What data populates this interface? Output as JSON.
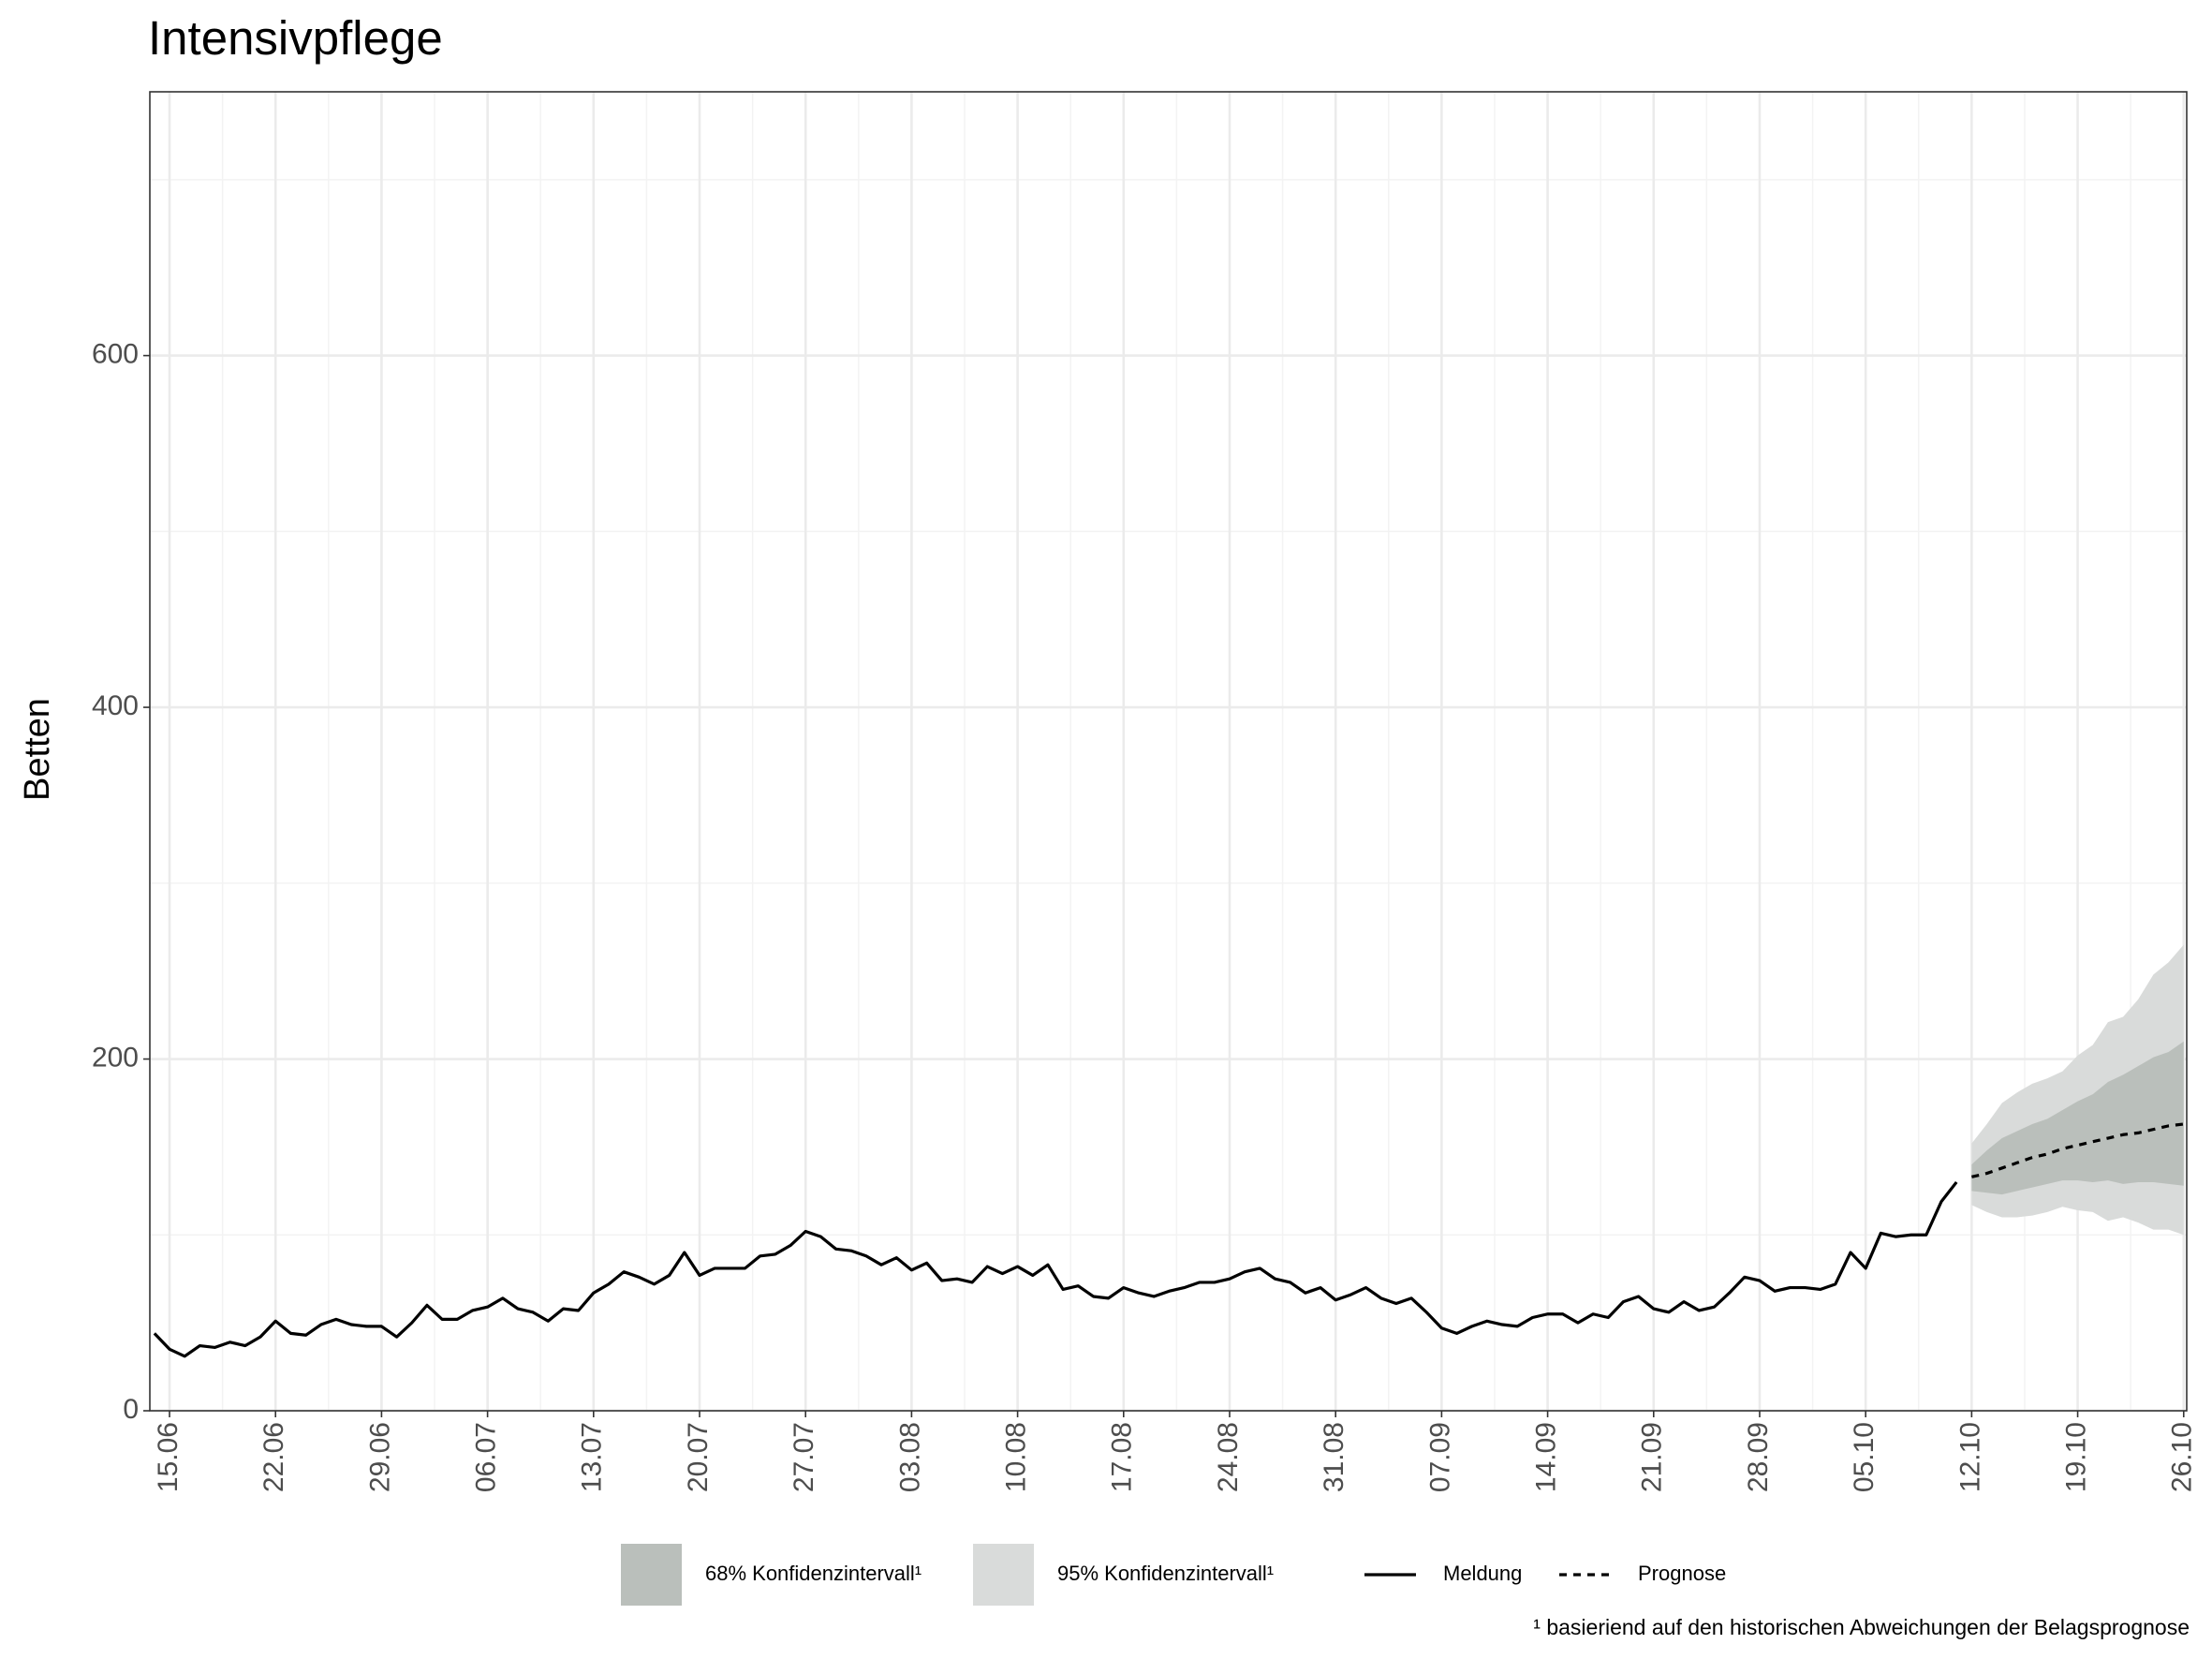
{
  "chart_data": {
    "type": "line",
    "title": "Intensivpflege",
    "ylabel": "Betten",
    "footnote": "¹ basieriend auf den historischen Abweichungen der Belagsprognose",
    "xlim": [
      "14.06",
      "26.10"
    ],
    "xticks": [
      "15.06",
      "22.06",
      "29.06",
      "06.07",
      "13.07",
      "20.07",
      "27.07",
      "03.08",
      "10.08",
      "17.08",
      "24.08",
      "31.08",
      "07.09",
      "14.09",
      "21.09",
      "28.09",
      "05.10",
      "12.10",
      "19.10",
      "26.10"
    ],
    "ylim": [
      0,
      750
    ],
    "yticks": [
      0,
      200,
      400,
      600
    ],
    "grid": true,
    "series": [
      {
        "name": "Meldung",
        "color": "#000000",
        "dash": false,
        "x": [
          "14.06",
          "15.06",
          "16.06",
          "17.06",
          "18.06",
          "19.06",
          "20.06",
          "21.06",
          "22.06",
          "23.06",
          "24.06",
          "25.06",
          "26.06",
          "27.06",
          "28.06",
          "29.06",
          "30.06",
          "01.07",
          "02.07",
          "03.07",
          "04.07",
          "05.07",
          "06.07",
          "07.07",
          "08.07",
          "09.07",
          "10.07",
          "11.07",
          "12.07",
          "13.07",
          "14.07",
          "15.07",
          "16.07",
          "17.07",
          "18.07",
          "19.07",
          "20.07",
          "21.07",
          "22.07",
          "23.07",
          "24.07",
          "25.07",
          "26.07",
          "27.07",
          "28.07",
          "29.07",
          "30.07",
          "31.07",
          "01.08",
          "02.08",
          "03.08",
          "04.08",
          "05.08",
          "06.08",
          "07.08",
          "08.08",
          "09.08",
          "10.08",
          "11.08",
          "12.08",
          "13.08",
          "14.08",
          "15.08",
          "16.08",
          "17.08",
          "18.08",
          "19.08",
          "20.08",
          "21.08",
          "22.08",
          "23.08",
          "24.08",
          "25.08",
          "26.08",
          "27.08",
          "28.08",
          "29.08",
          "30.08",
          "31.08",
          "01.09",
          "02.09",
          "03.09",
          "04.09",
          "05.09",
          "06.09",
          "07.09",
          "08.09",
          "09.09",
          "10.09",
          "11.09",
          "12.09",
          "13.09",
          "14.09",
          "15.09",
          "16.09",
          "17.09",
          "18.09",
          "19.09",
          "20.09",
          "21.09",
          "22.09",
          "23.09",
          "24.09",
          "25.09",
          "26.09",
          "27.09",
          "28.09",
          "29.09",
          "30.09",
          "01.10",
          "02.10",
          "03.10",
          "04.10",
          "05.10",
          "06.10",
          "07.10",
          "08.10",
          "09.10",
          "10.10",
          "11.10"
        ],
        "values": [
          44,
          35,
          31,
          37,
          36,
          39,
          37,
          42,
          51,
          44,
          43,
          49,
          52,
          49,
          48,
          48,
          42,
          50,
          60,
          52,
          52,
          57,
          59,
          64,
          58,
          56,
          51,
          58,
          57,
          67,
          72,
          79,
          76,
          72,
          77,
          90,
          77,
          81,
          81,
          81,
          88,
          89,
          94,
          102,
          99,
          92,
          91,
          88,
          83,
          87,
          80,
          84,
          74,
          75,
          73,
          82,
          78,
          82,
          77,
          83,
          69,
          71,
          65,
          64,
          70,
          67,
          65,
          68,
          70,
          73,
          73,
          75,
          79,
          81,
          75,
          73,
          67,
          70,
          63,
          66,
          70,
          64,
          61,
          64,
          56,
          47,
          44,
          48,
          51,
          49,
          48,
          53,
          55,
          55,
          50,
          55,
          53,
          62,
          65,
          58,
          56,
          62,
          57,
          59,
          67,
          76,
          74,
          68,
          70,
          70,
          69,
          72,
          90,
          81,
          101,
          99,
          100,
          100,
          119,
          130
        ]
      },
      {
        "name": "Prognose",
        "color": "#000000",
        "dash": true,
        "x": [
          "12.10",
          "13.10",
          "14.10",
          "15.10",
          "16.10",
          "17.10",
          "18.10",
          "19.10",
          "20.10",
          "21.10",
          "22.10",
          "23.10",
          "24.10",
          "25.10",
          "26.10"
        ],
        "values": [
          133,
          135,
          138,
          141,
          144,
          146,
          149,
          151,
          153,
          155,
          157,
          158,
          160,
          162,
          163
        ],
        "intervals": [
          {
            "name": "68% Konfidenzintervall¹",
            "color": "#babfbb",
            "lower": [
              125,
              124,
              123,
              125,
              127,
              129,
              131,
              131,
              130,
              131,
              129,
              130,
              130,
              129,
              128
            ],
            "upper": [
              140,
              148,
              155,
              159,
              163,
              166,
              171,
              176,
              180,
              187,
              191,
              196,
              201,
              204,
              210
            ]
          },
          {
            "name": "95% Konfidenzintervall¹",
            "color": "#d9dbda",
            "lower": [
              117,
              113,
              110,
              110,
              111,
              113,
              116,
              114,
              113,
              108,
              110,
              107,
              103,
              103,
              100
            ],
            "upper": [
              152,
              163,
              175,
              181,
              186,
              189,
              193,
              202,
              208,
              221,
              224,
              234,
              248,
              255,
              265
            ]
          }
        ]
      }
    ]
  }
}
